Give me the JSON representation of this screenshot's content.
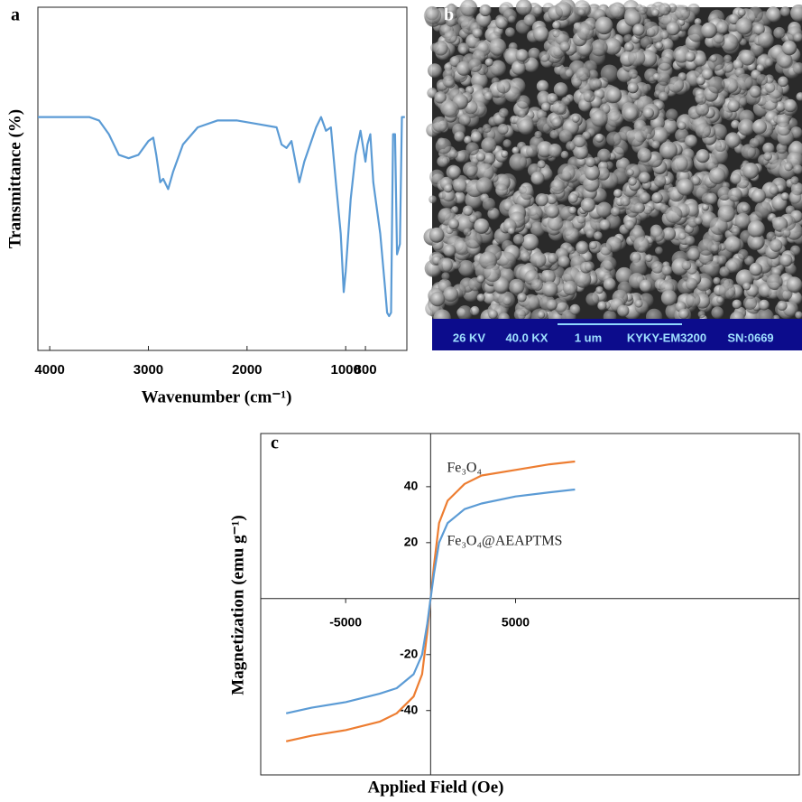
{
  "chart_data": [
    {
      "type": "line",
      "label": "a",
      "xlabel": "Wavenumber (cm⁻¹)",
      "ylabel": "Transmittance (%)",
      "x": [
        4120,
        3900,
        3700,
        3600,
        3500,
        3400,
        3300,
        3200,
        3100,
        3000,
        2950,
        2920,
        2880,
        2850,
        2800,
        2750,
        2650,
        2500,
        2300,
        2100,
        1900,
        1700,
        1650,
        1600,
        1550,
        1470,
        1420,
        1300,
        1250,
        1200,
        1150,
        1100,
        1050,
        1020,
        1000,
        950,
        900,
        850,
        800,
        780,
        750,
        720,
        650,
        600,
        580,
        560,
        540,
        520,
        500,
        480,
        450,
        430,
        400
      ],
      "series": [
        {
          "color": "#5b9bd5",
          "values": [
            68,
            68,
            68,
            68,
            67,
            63,
            57,
            56,
            57,
            61,
            62,
            57,
            49,
            50,
            47,
            52,
            60,
            65,
            67,
            67,
            66,
            65,
            60,
            59,
            61,
            49,
            55,
            65,
            68,
            64,
            65,
            49,
            34,
            17,
            23,
            44,
            57,
            64,
            55,
            60,
            63,
            49,
            34,
            18,
            11,
            10,
            11,
            63,
            63,
            28,
            31,
            68,
            68
          ]
        }
      ],
      "xlim": [
        4120,
        380
      ],
      "ylim": [
        0,
        100
      ],
      "xticks": [
        4000,
        3000,
        2000,
        1000,
        800
      ]
    },
    {
      "type": "image",
      "label": "b",
      "info": [
        "26 KV",
        "40.0 KX",
        "1 um",
        "KYKY-EM3200",
        "SN:0669"
      ]
    },
    {
      "type": "line",
      "label": "c",
      "xlabel": "Applied Field (Oe)",
      "ylabel": "Magnetization (emu g⁻¹)",
      "x": [
        -8500,
        -7000,
        -5000,
        -3000,
        -2000,
        -1000,
        -500,
        -200,
        0,
        200,
        500,
        1000,
        2000,
        3000,
        5000,
        7000,
        8500
      ],
      "series": [
        {
          "name": "Fe₃O₄",
          "color": "#ed7d31",
          "values": [
            -51,
            -49,
            -47,
            -44,
            -41,
            -35,
            -27,
            -12,
            0,
            12,
            27,
            35,
            41,
            44,
            46,
            48,
            49
          ]
        },
        {
          "name": "Fe₃O₄@AEAPTMS",
          "color": "#5b9bd5",
          "values": [
            -41,
            -39,
            -37,
            -34,
            -32,
            -27,
            -20,
            -9,
            0,
            9,
            20,
            27,
            32,
            34,
            36.5,
            38,
            39
          ]
        }
      ],
      "xlim": [
        -10000,
        21700
      ],
      "ylim": [
        -63,
        59
      ],
      "xticks": [
        -5000,
        5000
      ],
      "yticks": [
        -40,
        -20,
        20,
        40
      ]
    }
  ]
}
